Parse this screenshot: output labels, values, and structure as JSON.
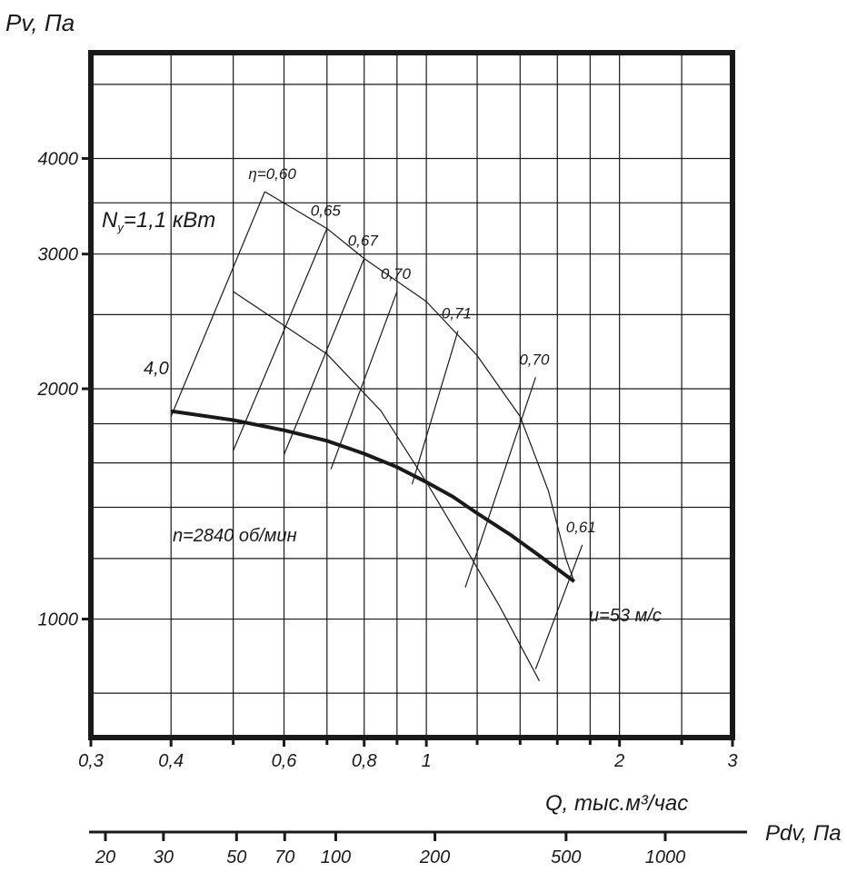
{
  "chart_data": {
    "type": "line",
    "x_scale": "log",
    "y_scale": "log",
    "ylabel": "Pv, Па",
    "xlabel": "Q, тыс.м³/час",
    "x2label": "Pdv, Па",
    "xlim": [
      0.3,
      3
    ],
    "ylim": [
      700,
      5500
    ],
    "x_ticks": [
      {
        "value": 0.3,
        "label": "0,3"
      },
      {
        "value": 0.4,
        "label": "0,4"
      },
      {
        "value": 0.6,
        "label": "0,6"
      },
      {
        "value": 0.8,
        "label": "0,8"
      },
      {
        "value": 1,
        "label": "1"
      },
      {
        "value": 2,
        "label": "2"
      },
      {
        "value": 3,
        "label": "3"
      }
    ],
    "x_minor": [
      0.5,
      0.7,
      0.9,
      1.2,
      1.4,
      1.6,
      1.8,
      2.5
    ],
    "y_ticks": [
      {
        "value": 1000,
        "label": "1000"
      },
      {
        "value": 2000,
        "label": "2000"
      },
      {
        "value": 3000,
        "label": "3000"
      },
      {
        "value": 4000,
        "label": "4000"
      }
    ],
    "y_minor": [
      800,
      1200,
      1400,
      1600,
      1800,
      2500,
      3500,
      5000
    ],
    "pdv_ticks": [
      {
        "value": 20,
        "label": "20"
      },
      {
        "value": 30,
        "label": "30"
      },
      {
        "value": 50,
        "label": "50"
      },
      {
        "value": 70,
        "label": "70"
      },
      {
        "value": 100,
        "label": "100"
      },
      {
        "value": 200,
        "label": "200"
      },
      {
        "value": 500,
        "label": "500"
      },
      {
        "value": 1000,
        "label": "1000"
      }
    ],
    "series": [
      {
        "role": "performance",
        "label": "n=2840 об/мин",
        "points": [
          [
            0.4,
            1870
          ],
          [
            0.5,
            1820
          ],
          [
            0.6,
            1765
          ],
          [
            0.7,
            1710
          ],
          [
            0.8,
            1645
          ],
          [
            0.9,
            1580
          ],
          [
            1.0,
            1510
          ],
          [
            1.1,
            1445
          ],
          [
            1.2,
            1375
          ],
          [
            1.35,
            1290
          ],
          [
            1.5,
            1210
          ],
          [
            1.7,
            1120
          ]
        ]
      },
      {
        "role": "power",
        "label": "Nу=1,1 кВт",
        "points": [
          [
            0.56,
            3620
          ],
          [
            0.7,
            3240
          ],
          [
            0.8,
            2960
          ],
          [
            1.0,
            2600
          ],
          [
            1.2,
            2210
          ],
          [
            1.4,
            1840
          ],
          [
            1.55,
            1470
          ],
          [
            1.65,
            1200
          ],
          [
            1.7,
            1120
          ]
        ]
      },
      {
        "role": "power",
        "label": "4,0",
        "points": [
          [
            0.5,
            2680
          ],
          [
            0.7,
            2220
          ],
          [
            0.85,
            1870
          ],
          [
            1.0,
            1510
          ],
          [
            1.15,
            1240
          ],
          [
            1.3,
            1040
          ],
          [
            1.5,
            830
          ]
        ]
      }
    ],
    "efficiency_lines": [
      {
        "label": "η=0,60",
        "from": [
          0.4,
          1840
        ],
        "to": [
          0.56,
          3620
        ]
      },
      {
        "label": "0,65",
        "from": [
          0.5,
          1660
        ],
        "to": [
          0.7,
          3240
        ]
      },
      {
        "label": "0,67",
        "from": [
          0.6,
          1640
        ],
        "to": [
          0.8,
          2960
        ]
      },
      {
        "label": "0,70",
        "from": [
          0.71,
          1570
        ],
        "to": [
          0.9,
          2680
        ]
      },
      {
        "label": "0,71",
        "from": [
          0.95,
          1500
        ],
        "to": [
          1.12,
          2380
        ]
      },
      {
        "label": "0,70",
        "from": [
          1.15,
          1100
        ],
        "to": [
          1.48,
          2070
        ]
      },
      {
        "label": "0,61",
        "from": [
          1.48,
          860
        ],
        "to": [
          1.75,
          1250
        ]
      }
    ],
    "annotations": [
      {
        "text": "u=53 м/с",
        "at": [
          1.8,
          1000
        ]
      }
    ]
  }
}
